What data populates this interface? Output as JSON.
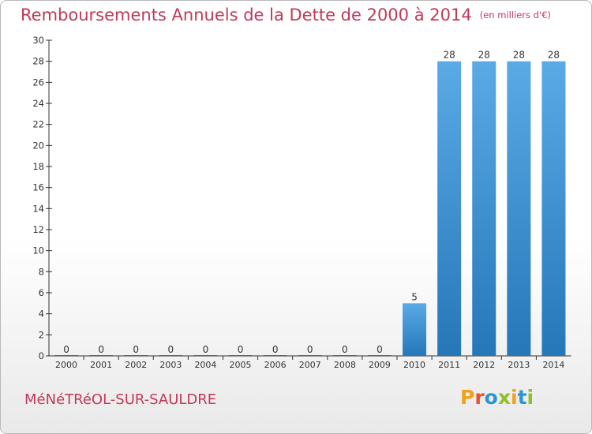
{
  "title": "Remboursements Annuels de la Dette de 2000 à 2014",
  "unit": "(en milliers d'€)",
  "city": "MéNéTRéOL-SUR-SAULDRE",
  "logo": {
    "text": "Proxiti",
    "colors": [
      "#f0a11c",
      "#e8522d",
      "#2d95d6",
      "#8fbf2a",
      "#f0a11c",
      "#2d95d6",
      "#8fbf2a"
    ]
  },
  "colors": {
    "bar_light": "#5aaae6",
    "bar_dark": "#2577b8",
    "title": "#c0395a",
    "axis": "#333333"
  },
  "chart_data": {
    "type": "bar",
    "title": "Remboursements Annuels de la Dette de 2000 à 2014",
    "xlabel": "",
    "ylabel": "",
    "categories": [
      "2000",
      "2001",
      "2002",
      "2003",
      "2004",
      "2005",
      "2006",
      "2007",
      "2008",
      "2009",
      "2010",
      "2011",
      "2012",
      "2013",
      "2014"
    ],
    "values": [
      0,
      0,
      0,
      0,
      0,
      0,
      0,
      0,
      0,
      0,
      5,
      28,
      28,
      28,
      28
    ],
    "ylim": [
      0,
      30
    ],
    "yticks": [
      0,
      2,
      4,
      6,
      8,
      10,
      12,
      14,
      16,
      18,
      20,
      22,
      24,
      26,
      28,
      30
    ],
    "grid": false,
    "legend": "none"
  }
}
